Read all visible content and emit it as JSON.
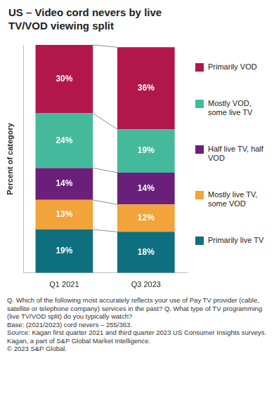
{
  "chart_data": {
    "type": "bar",
    "title": "US – Video cord nevers by live TV/VOD viewing split",
    "y_label": "Percent of category",
    "categories": [
      "Q1 2021",
      "Q3 2023"
    ],
    "series": [
      {
        "name": "Primarily VOD",
        "color": "#b2174b",
        "values": [
          30,
          36
        ],
        "value_labels": [
          "30%",
          "36%"
        ]
      },
      {
        "name": "Mostly VOD, some live TV",
        "color": "#45b99c",
        "values": [
          24,
          19
        ],
        "value_labels": [
          "24%",
          "19%"
        ]
      },
      {
        "name": "Half live TV, half VOD",
        "color": "#6a1f7a",
        "values": [
          14,
          14
        ],
        "value_labels": [
          "14%",
          "14%"
        ]
      },
      {
        "name": "Mostly live TV, some VOD",
        "color": "#f2a33a",
        "values": [
          13,
          12
        ],
        "value_labels": [
          "13%",
          "12%"
        ]
      },
      {
        "name": "Primarily live TV",
        "color": "#0e6f7e",
        "values": [
          19,
          18
        ],
        "value_labels": [
          "19%",
          "18%"
        ]
      }
    ],
    "ylim": [
      0,
      100
    ],
    "stacked": true,
    "data_labels": true,
    "legend": "right",
    "grid": false,
    "tick_labels": "x",
    "notes": [
      "Q. Which of the following most accurately reflects your use of Pay TV provider (cable, satellite or telephone company) services in the past? Q. What type of TV programming (live TV/VOD split) do you typically watch?",
      "Base: (2021/2023) cord nevers – 255/363.",
      "Source: Kagan first quarter 2021 and third quarter 2023 US Consumer Insights surveys.",
      "Kagan, a part of S&P Global Market Intelligence.",
      "© 2023 S&P Global."
    ]
  }
}
